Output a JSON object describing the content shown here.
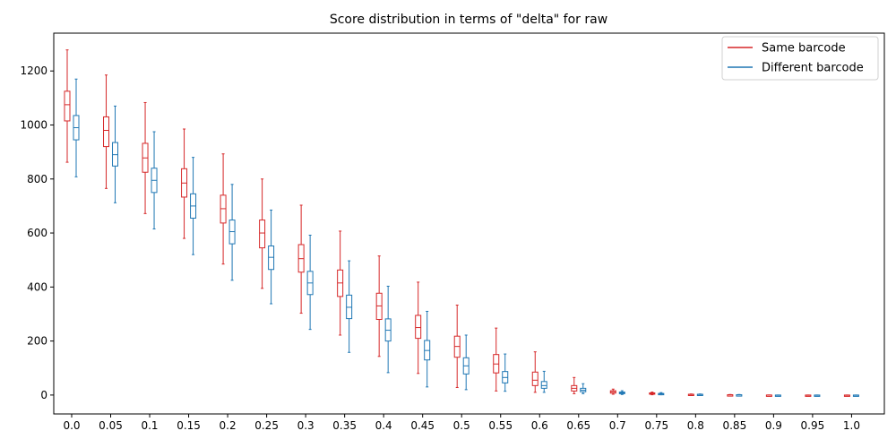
{
  "chart_data": {
    "type": "boxplot",
    "title": "Score distribution in terms of \"delta\" for raw",
    "xlabel": "",
    "ylabel": "",
    "categories": [
      "0.0",
      "0.05",
      "0.1",
      "0.15",
      "0.2",
      "0.25",
      "0.3",
      "0.35",
      "0.4",
      "0.45",
      "0.5",
      "0.55",
      "0.6",
      "0.65",
      "0.7",
      "0.75",
      "0.8",
      "0.85",
      "0.9",
      "0.95",
      "1.0"
    ],
    "ylim": [
      -70,
      1340
    ],
    "yticks": [
      0,
      200,
      400,
      600,
      800,
      1000,
      1200
    ],
    "grid": false,
    "legend_position": "top-right",
    "series": [
      {
        "name": "Same barcode",
        "color": "#d62728",
        "boxes": [
          {
            "whislo": 862,
            "q1": 1015,
            "med": 1075,
            "q3": 1125,
            "whishi": 1278
          },
          {
            "whislo": 765,
            "q1": 920,
            "med": 980,
            "q3": 1030,
            "whishi": 1185
          },
          {
            "whislo": 672,
            "q1": 825,
            "med": 878,
            "q3": 932,
            "whishi": 1083
          },
          {
            "whislo": 580,
            "q1": 733,
            "med": 785,
            "q3": 838,
            "whishi": 985
          },
          {
            "whislo": 485,
            "q1": 637,
            "med": 690,
            "q3": 740,
            "whishi": 893
          },
          {
            "whislo": 395,
            "q1": 545,
            "med": 600,
            "q3": 648,
            "whishi": 800
          },
          {
            "whislo": 303,
            "q1": 455,
            "med": 505,
            "q3": 557,
            "whishi": 703
          },
          {
            "whislo": 222,
            "q1": 365,
            "med": 415,
            "q3": 463,
            "whishi": 607
          },
          {
            "whislo": 143,
            "q1": 280,
            "med": 330,
            "q3": 377,
            "whishi": 515
          },
          {
            "whislo": 80,
            "q1": 210,
            "med": 250,
            "q3": 295,
            "whishi": 418
          },
          {
            "whislo": 28,
            "q1": 140,
            "med": 180,
            "q3": 218,
            "whishi": 333
          },
          {
            "whislo": 15,
            "q1": 82,
            "med": 115,
            "q3": 150,
            "whishi": 248
          },
          {
            "whislo": 10,
            "q1": 35,
            "med": 55,
            "q3": 85,
            "whishi": 160
          },
          {
            "whislo": 5,
            "q1": 15,
            "med": 25,
            "q3": 35,
            "whishi": 65
          },
          {
            "whislo": 3,
            "q1": 7,
            "med": 12,
            "q3": 16,
            "whishi": 22
          },
          {
            "whislo": 1,
            "q1": 4,
            "med": 6,
            "q3": 8,
            "whishi": 11
          },
          {
            "whislo": 0,
            "q1": 1,
            "med": 2,
            "q3": 3,
            "whishi": 4
          },
          {
            "whislo": 0,
            "q1": 0,
            "med": 1,
            "q3": 1,
            "whishi": 2
          },
          {
            "whislo": -1,
            "q1": -1,
            "med": 0,
            "q3": 0,
            "whishi": 0
          },
          {
            "whislo": -2,
            "q1": -1,
            "med": -1,
            "q3": 0,
            "whishi": 0
          },
          {
            "whislo": -2,
            "q1": -1,
            "med": -1,
            "q3": 0,
            "whishi": 0
          }
        ]
      },
      {
        "name": "Different barcode",
        "color": "#1f77b4",
        "boxes": [
          {
            "whislo": 808,
            "q1": 945,
            "med": 990,
            "q3": 1035,
            "whishi": 1170
          },
          {
            "whislo": 712,
            "q1": 848,
            "med": 890,
            "q3": 935,
            "whishi": 1070
          },
          {
            "whislo": 615,
            "q1": 750,
            "med": 795,
            "q3": 840,
            "whishi": 975
          },
          {
            "whislo": 520,
            "q1": 655,
            "med": 700,
            "q3": 745,
            "whishi": 880
          },
          {
            "whislo": 425,
            "q1": 560,
            "med": 605,
            "q3": 648,
            "whishi": 780
          },
          {
            "whislo": 338,
            "q1": 465,
            "med": 510,
            "q3": 552,
            "whishi": 685
          },
          {
            "whislo": 243,
            "q1": 372,
            "med": 415,
            "q3": 458,
            "whishi": 592
          },
          {
            "whislo": 158,
            "q1": 283,
            "med": 325,
            "q3": 370,
            "whishi": 497
          },
          {
            "whislo": 83,
            "q1": 200,
            "med": 240,
            "q3": 282,
            "whishi": 403
          },
          {
            "whislo": 30,
            "q1": 130,
            "med": 165,
            "q3": 202,
            "whishi": 310
          },
          {
            "whislo": 20,
            "q1": 78,
            "med": 108,
            "q3": 138,
            "whishi": 222
          },
          {
            "whislo": 14,
            "q1": 45,
            "med": 65,
            "q3": 87,
            "whishi": 152
          },
          {
            "whislo": 10,
            "q1": 25,
            "med": 35,
            "q3": 50,
            "whishi": 88
          },
          {
            "whislo": 5,
            "q1": 12,
            "med": 18,
            "q3": 25,
            "whishi": 42
          },
          {
            "whislo": 2,
            "q1": 5,
            "med": 8,
            "q3": 11,
            "whishi": 16
          },
          {
            "whislo": 1,
            "q1": 3,
            "med": 4,
            "q3": 6,
            "whishi": 9
          },
          {
            "whislo": 0,
            "q1": 1,
            "med": 2,
            "q3": 3,
            "whishi": 4
          },
          {
            "whislo": 0,
            "q1": 0,
            "med": 1,
            "q3": 1,
            "whishi": 2
          },
          {
            "whislo": -2,
            "q1": -1,
            "med": -1,
            "q3": 0,
            "whishi": 0
          },
          {
            "whislo": -2,
            "q1": -1,
            "med": -1,
            "q3": 0,
            "whishi": 0
          },
          {
            "whislo": -2,
            "q1": -1,
            "med": -1,
            "q3": 0,
            "whishi": 0
          }
        ]
      }
    ]
  }
}
